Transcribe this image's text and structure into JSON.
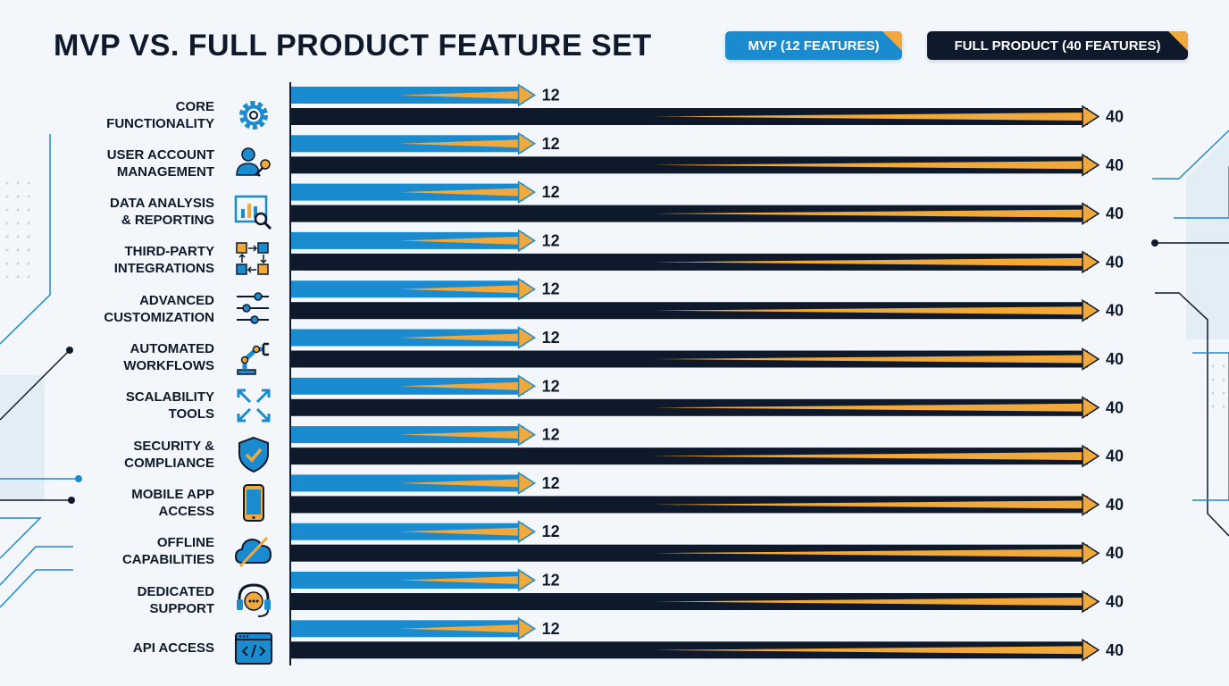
{
  "title": "MVP VS. FULL PRODUCT FEATURE SET",
  "legend": {
    "mvp": "MVP (12 FEATURES)",
    "full": "FULL PRODUCT (40 FEATURES)"
  },
  "colors": {
    "mvp": "#1b8bd0",
    "full": "#0e1a2b",
    "accent": "#f2a93b",
    "background": "#f3f7fb"
  },
  "chart_data": {
    "type": "bar",
    "orientation": "horizontal",
    "title": "MVP VS. FULL PRODUCT FEATURE SET",
    "categories": [
      "CORE\nFUNCTIONALITY",
      "USER ACCOUNT\nMANAGEMENT",
      "DATA ANALYSIS\n& REPORTING",
      "THIRD-PARTY\nINTEGRATIONS",
      "ADVANCED\nCUSTOMIZATION",
      "AUTOMATED\nWORKFLOWS",
      "SCALABILITY\nTOOLS",
      "SECURITY &\nCOMPLIANCE",
      "MOBILE APP\nACCESS",
      "OFFLINE\nCAPABILITIES",
      "DEDICATED\nSUPPORT",
      "API ACCESS"
    ],
    "icons": [
      "gear-icon",
      "user-key-icon",
      "chart-magnifier-icon",
      "integration-flow-icon",
      "sliders-icon",
      "robot-arm-icon",
      "expand-arrows-icon",
      "shield-check-icon",
      "smartphone-icon",
      "cloud-off-icon",
      "headset-chat-icon",
      "code-window-icon"
    ],
    "series": [
      {
        "name": "MVP (12 FEATURES)",
        "values": [
          12,
          12,
          12,
          12,
          12,
          12,
          12,
          12,
          12,
          12,
          12,
          12
        ]
      },
      {
        "name": "FULL PRODUCT (40 FEATURES)",
        "values": [
          40,
          40,
          40,
          40,
          40,
          40,
          40,
          40,
          40,
          40,
          40,
          40
        ]
      }
    ],
    "xlim": [
      0,
      40
    ],
    "grid": false,
    "legend_position": "top-right"
  }
}
